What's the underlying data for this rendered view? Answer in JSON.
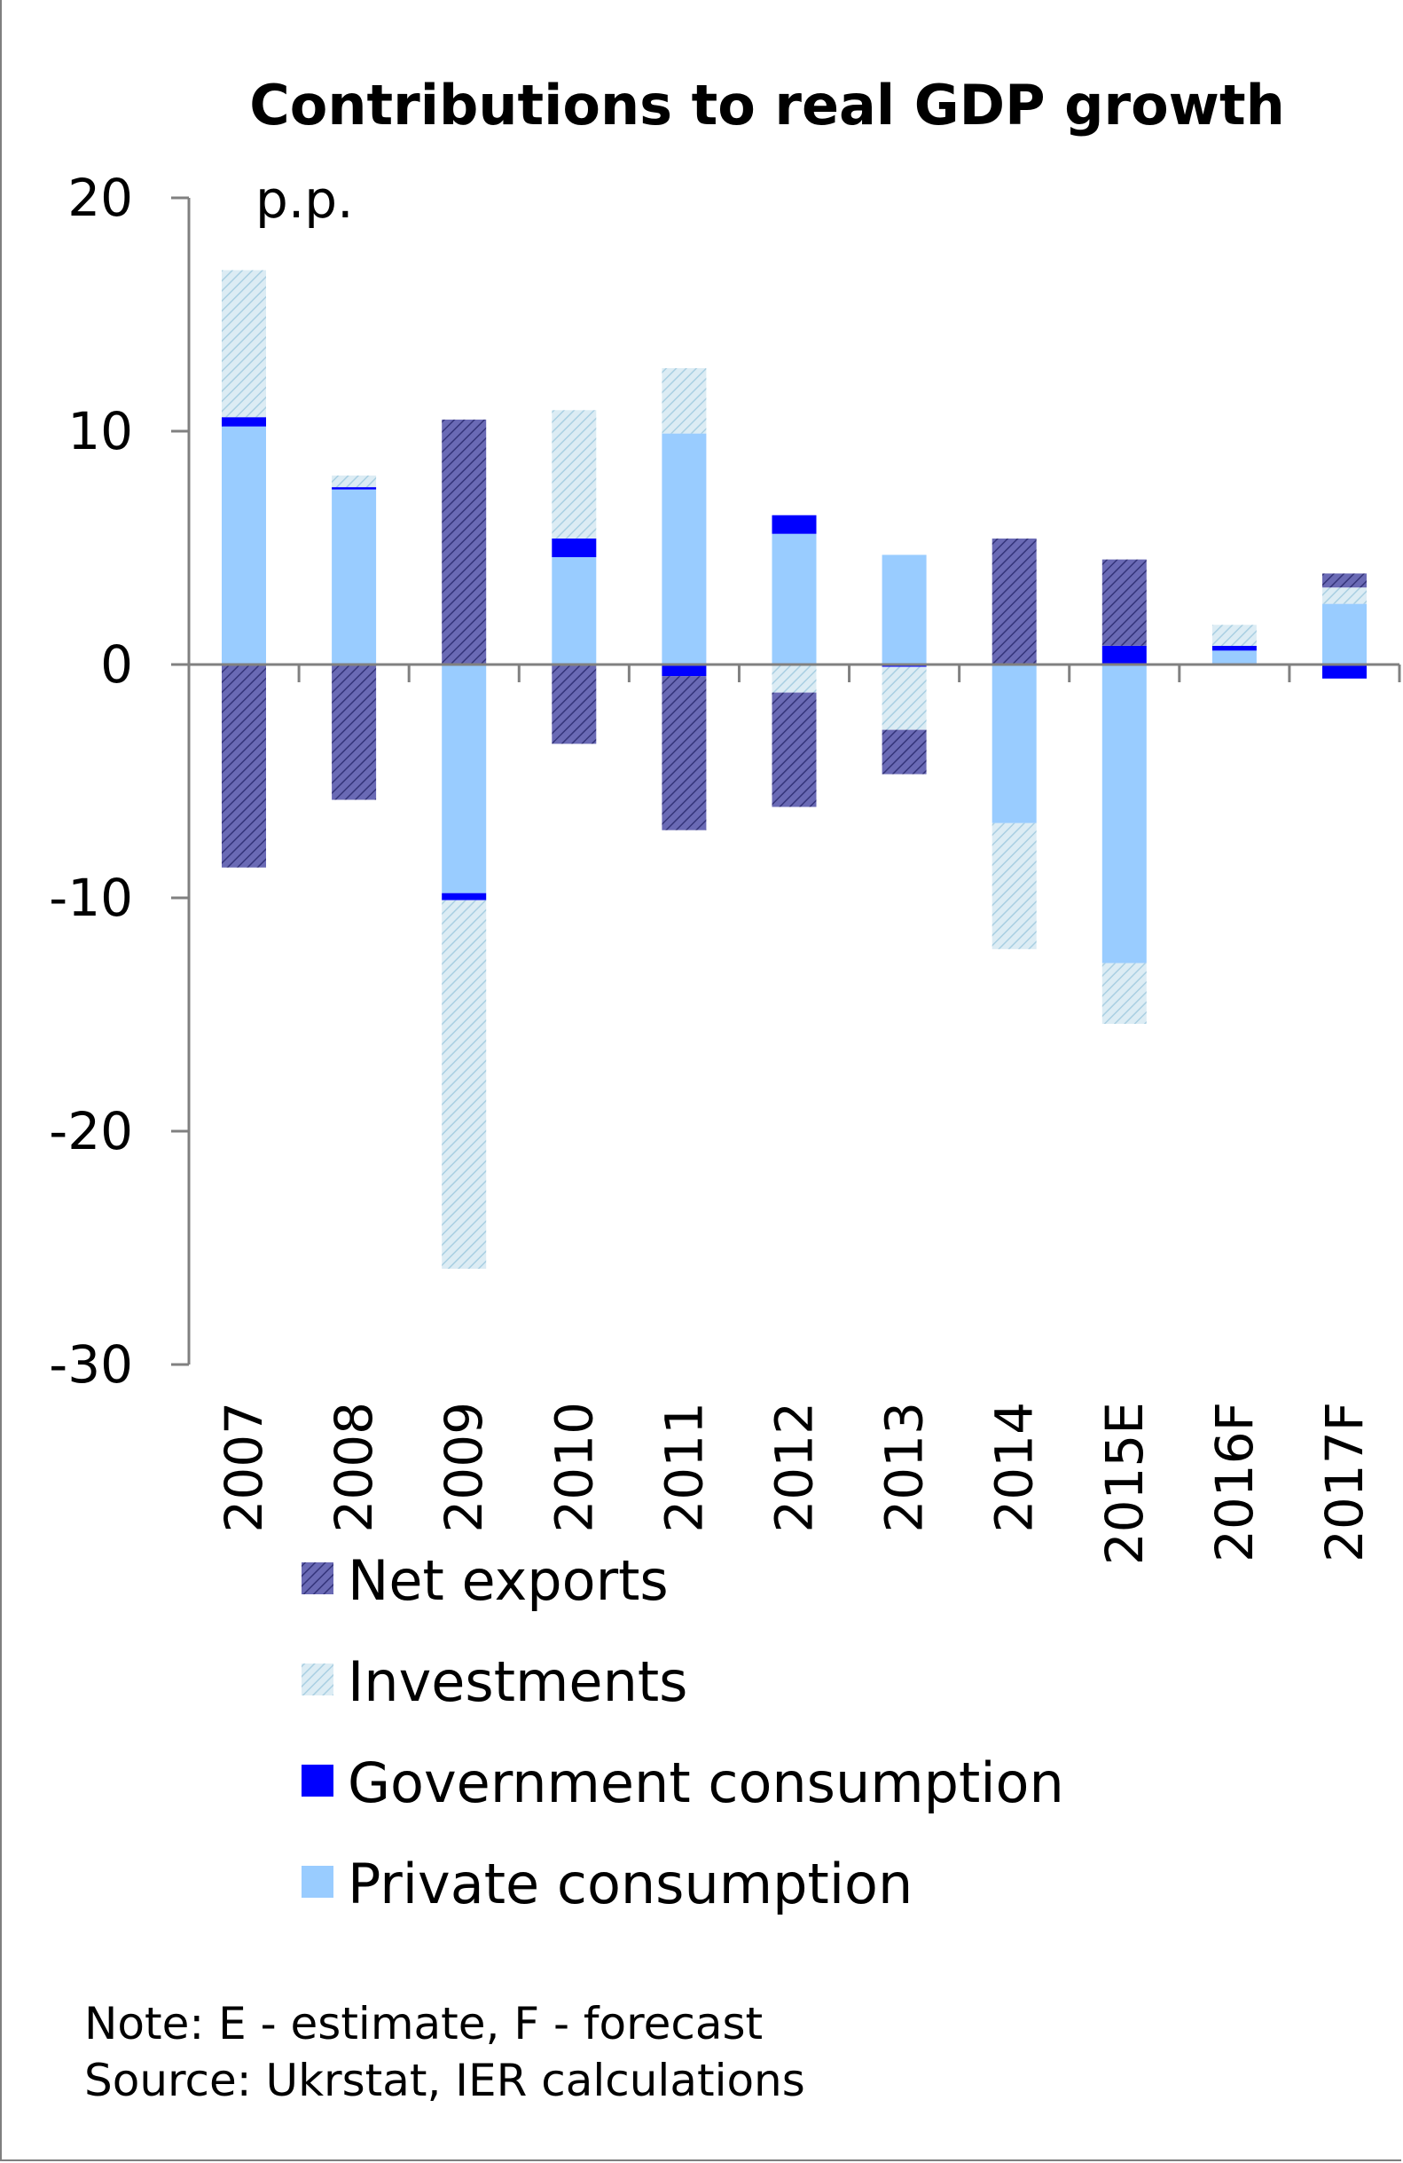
{
  "chart_data": {
    "type": "bar",
    "stacked": true,
    "title": "Contributions to real GDP growth",
    "unit_label": "p.p.",
    "categories": [
      "2007",
      "2008",
      "2009",
      "2010",
      "2011",
      "2012",
      "2013",
      "2014",
      "2015E",
      "2016F",
      "2017F"
    ],
    "ylim": [
      -30,
      20
    ],
    "yticks": [
      "20",
      "10",
      "0",
      "-10",
      "-20",
      "-30"
    ],
    "ytick_values": [
      20,
      10,
      0,
      -10,
      -20,
      -30
    ],
    "grid": false,
    "legend_position": "bottom",
    "series": [
      {
        "name": "Private consumption",
        "color": "#99ccff",
        "pattern": "solid",
        "values": [
          10.2,
          7.5,
          -9.8,
          4.6,
          9.9,
          5.6,
          4.7,
          -6.8,
          -12.8,
          0.6,
          2.6
        ]
      },
      {
        "name": "Government consumption",
        "color": "#0000ff",
        "pattern": "solid",
        "values": [
          0.4,
          0.1,
          -0.3,
          0.8,
          -0.5,
          0.8,
          -0.1,
          0.0,
          0.8,
          0.2,
          -0.6
        ]
      },
      {
        "name": "Investments",
        "color": "#cfe3ee",
        "pattern": "light-hatch",
        "values": [
          6.3,
          0.5,
          -15.8,
          5.5,
          2.8,
          -1.2,
          -2.7,
          -5.4,
          -2.6,
          0.9,
          0.7
        ]
      },
      {
        "name": "Net exports",
        "color": "#5b5ba6",
        "pattern": "dark-hatch",
        "values": [
          -8.7,
          -5.8,
          10.5,
          -3.4,
          -6.6,
          -4.9,
          -1.9,
          5.4,
          3.7,
          0.0,
          0.6
        ]
      }
    ],
    "legend_order": [
      "Net exports",
      "Investments",
      "Government consumption",
      "Private consumption"
    ]
  },
  "footer": {
    "note": "Note: E - estimate, F - forecast",
    "source": "Source: Ukrstat, IER calculations"
  }
}
